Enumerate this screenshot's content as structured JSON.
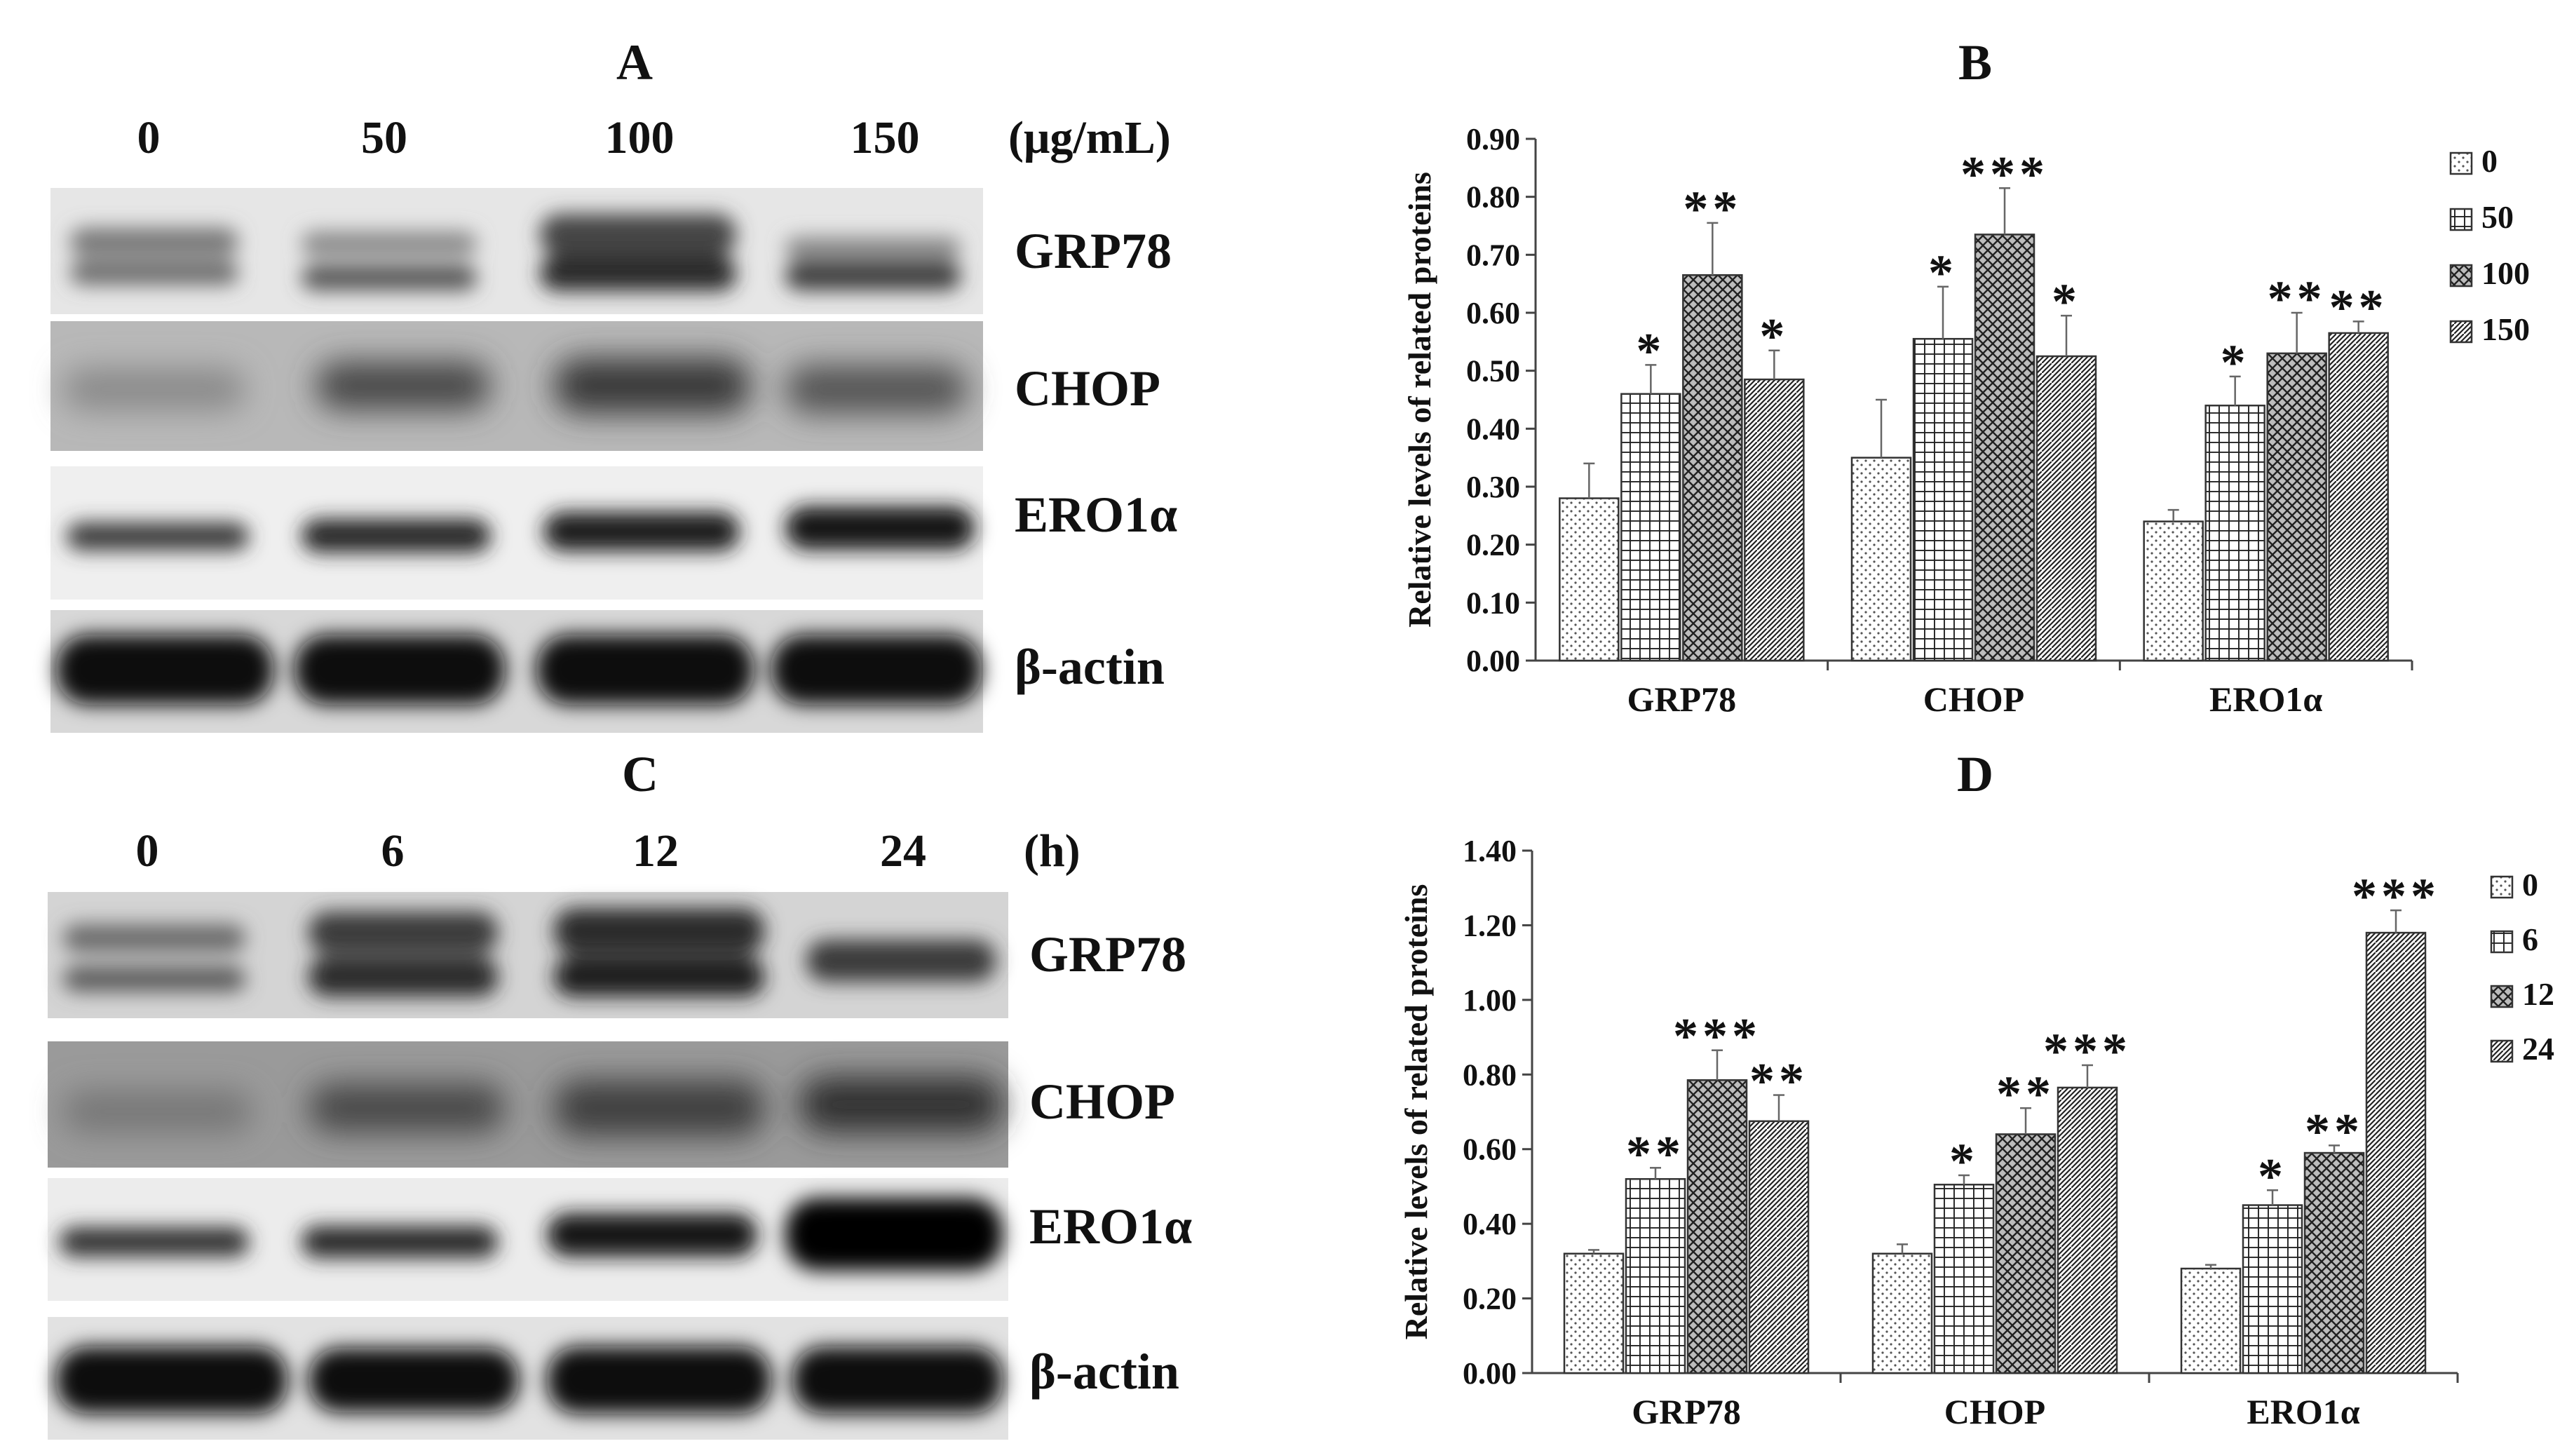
{
  "panels": {
    "A": {
      "letter": "A",
      "conditions": [
        "0",
        "50",
        "100",
        "150"
      ],
      "unit": "(μg/mL)",
      "proteins": [
        "GRP78",
        "CHOP",
        "ERO1α",
        "β-actin"
      ]
    },
    "C": {
      "letter": "C",
      "conditions": [
        "0",
        "6",
        "12",
        "24"
      ],
      "unit": "(h)",
      "proteins": [
        "GRP78",
        "CHOP",
        "ERO1α",
        "β-actin"
      ]
    }
  },
  "chart_data": [
    {
      "panel": "B",
      "type": "bar",
      "title": "",
      "xlabel": "",
      "ylabel": "Relative levels of related proteins",
      "ylim": [
        0,
        0.9
      ],
      "yticks": [
        "0.00",
        "0.10",
        "0.20",
        "0.30",
        "0.40",
        "0.50",
        "0.60",
        "0.70",
        "0.80",
        "0.90"
      ],
      "categories": [
        "GRP78",
        "CHOP",
        "ERO1α"
      ],
      "legend_position": "top-right",
      "grid": false,
      "series": [
        {
          "name": "0",
          "values": [
            0.28,
            0.35,
            0.24
          ],
          "errors": [
            0.06,
            0.1,
            0.02
          ],
          "significance": [
            "",
            "",
            ""
          ]
        },
        {
          "name": "50",
          "values": [
            0.46,
            0.555,
            0.44
          ],
          "errors": [
            0.05,
            0.09,
            0.05
          ],
          "significance": [
            "*",
            "*",
            "*"
          ]
        },
        {
          "name": "100",
          "values": [
            0.665,
            0.735,
            0.53
          ],
          "errors": [
            0.09,
            0.08,
            0.07
          ],
          "significance": [
            "**",
            "***",
            "**"
          ]
        },
        {
          "name": "150",
          "values": [
            0.485,
            0.525,
            0.565
          ],
          "errors": [
            0.05,
            0.07,
            0.02
          ],
          "significance": [
            "*",
            "*",
            "**"
          ]
        }
      ]
    },
    {
      "panel": "D",
      "type": "bar",
      "title": "",
      "xlabel": "",
      "ylabel": "Relative levels of related proteins",
      "ylim": [
        0,
        1.4
      ],
      "yticks": [
        "0.00",
        "0.20",
        "0.40",
        "0.60",
        "0.80",
        "1.00",
        "1.20",
        "1.40"
      ],
      "categories": [
        "GRP78",
        "CHOP",
        "ERO1α"
      ],
      "legend_position": "top-right",
      "grid": false,
      "series": [
        {
          "name": "0",
          "values": [
            0.32,
            0.32,
            0.28
          ],
          "errors": [
            0.01,
            0.025,
            0.01
          ],
          "significance": [
            "",
            "",
            ""
          ]
        },
        {
          "name": "6",
          "values": [
            0.52,
            0.505,
            0.45
          ],
          "errors": [
            0.03,
            0.025,
            0.04
          ],
          "significance": [
            "**",
            "*",
            "*"
          ]
        },
        {
          "name": "12",
          "values": [
            0.785,
            0.64,
            0.59
          ],
          "errors": [
            0.08,
            0.07,
            0.02
          ],
          "significance": [
            "***",
            "**",
            "**"
          ]
        },
        {
          "name": "24",
          "values": [
            0.675,
            0.765,
            1.18
          ],
          "errors": [
            0.07,
            0.06,
            0.06
          ],
          "significance": [
            "**",
            "***",
            "***"
          ]
        }
      ]
    }
  ]
}
